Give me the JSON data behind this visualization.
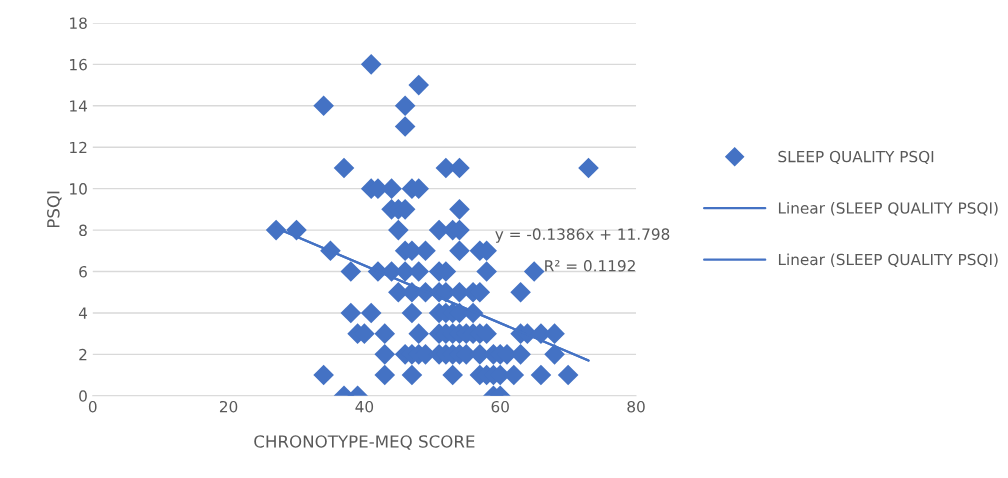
{
  "chart_data": {
    "type": "scatter",
    "xlabel": "CHRONOTYPE-MEQ SCORE",
    "ylabel": "PSQI",
    "xlim": [
      0,
      80
    ],
    "xticks": [
      0,
      20,
      40,
      60,
      80
    ],
    "ylim": [
      0,
      18
    ],
    "yticks": [
      0,
      2,
      4,
      6,
      8,
      10,
      12,
      14,
      16,
      18
    ],
    "grid": "y",
    "legend": "right",
    "marker": "diamond",
    "series": [
      {
        "name": "SLEEP QUALITY PSQI",
        "color": "#4472c4",
        "type": "scatter",
        "x": [
          41,
          48,
          34,
          46,
          46,
          37,
          52,
          54,
          73,
          41,
          42,
          44,
          47,
          48,
          44,
          45,
          46,
          54,
          27,
          30,
          45,
          51,
          53,
          54,
          35,
          46,
          47,
          49,
          54,
          57,
          58,
          38,
          42,
          44,
          46,
          48,
          51,
          52,
          58,
          65,
          45,
          47,
          49,
          51,
          52,
          54,
          56,
          57,
          63,
          38,
          41,
          47,
          51,
          52,
          53,
          54,
          56,
          39,
          40,
          43,
          48,
          51,
          52,
          53,
          54,
          55,
          56,
          57,
          58,
          63,
          64,
          66,
          68,
          43,
          46,
          47,
          48,
          49,
          51,
          52,
          53,
          54,
          55,
          57,
          59,
          60,
          61,
          63,
          68,
          34,
          43,
          47,
          53,
          57,
          58,
          59,
          60,
          62,
          66,
          70,
          37,
          39,
          59,
          60
        ],
        "values": [
          16,
          15,
          14,
          14,
          13,
          11,
          11,
          11,
          11,
          10,
          10,
          10,
          10,
          10,
          9,
          9,
          9,
          9,
          8,
          8,
          8,
          8,
          8,
          8,
          7,
          7,
          7,
          7,
          7,
          7,
          7,
          6,
          6,
          6,
          6,
          6,
          6,
          6,
          6,
          6,
          5,
          5,
          5,
          5,
          5,
          5,
          5,
          5,
          5,
          4,
          4,
          4,
          4,
          4,
          4,
          4,
          4,
          3,
          3,
          3,
          3,
          3,
          3,
          3,
          3,
          3,
          3,
          3,
          3,
          3,
          3,
          3,
          3,
          2,
          2,
          2,
          2,
          2,
          2,
          2,
          2,
          2,
          2,
          2,
          2,
          2,
          2,
          2,
          2,
          1,
          1,
          1,
          1,
          1,
          1,
          1,
          1,
          1,
          1,
          1,
          0,
          0,
          0,
          0
        ]
      },
      {
        "name": "Linear (SLEEP QUALITY PSQI)",
        "color": "#4472c4",
        "type": "line",
        "marker": "none",
        "x": [
          27,
          73
        ],
        "values": [
          8.1,
          1.7
        ]
      },
      {
        "name": "Linear (SLEEP QUALITY PSQI)",
        "color": "#4472c4",
        "type": "line",
        "marker": "none",
        "x": [
          27,
          73
        ],
        "values": [
          8.1,
          1.7
        ]
      }
    ],
    "annotations": [
      "y = -0.1386x + 11.798",
      "R² = 0.1192"
    ]
  }
}
